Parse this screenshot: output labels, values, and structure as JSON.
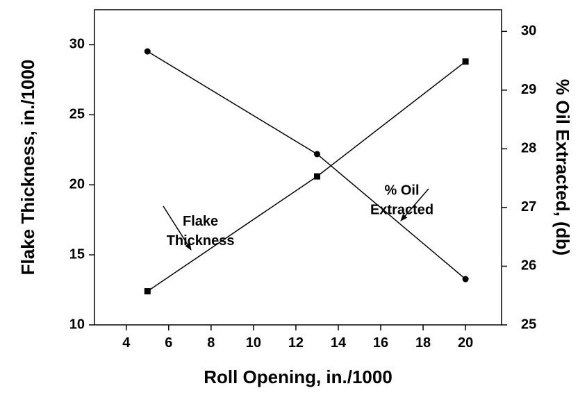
{
  "chart_data": {
    "type": "line",
    "x_label": "Roll Opening, in./1000",
    "y_label": "Flake Thickness, in./1000",
    "y2_label": "% Oil Extracted, (db)",
    "x": [
      5,
      13,
      20
    ],
    "series": [
      {
        "name": "Flake Thickness",
        "color": "#000000",
        "marker": "square",
        "values": [
          12.4,
          20.6,
          28.8
        ]
      },
      {
        "name": "% Oil Extracted",
        "color": "#000000",
        "marker": "circle",
        "axis": "y2",
        "values": [
          29.66,
          27.91,
          25.78
        ]
      }
    ],
    "xlim": [
      2.5,
      21.7
    ],
    "xticks": [
      4,
      6,
      8,
      10,
      12,
      14,
      16,
      18,
      20
    ],
    "ylim": [
      10,
      32.5
    ],
    "yticks": [
      10,
      15,
      20,
      25,
      30
    ],
    "y2lim": [
      25,
      30.37
    ],
    "y2ticks": [
      25,
      26,
      27,
      28,
      29,
      30
    ],
    "annotations": [
      {
        "lines": [
          "Flake",
          "Thickness"
        ],
        "x": 7.5,
        "y": 15.2
      },
      {
        "lines": [
          "% Oil",
          "Extracted"
        ],
        "x": 17,
        "y": 17.4
      }
    ],
    "grid": false
  }
}
